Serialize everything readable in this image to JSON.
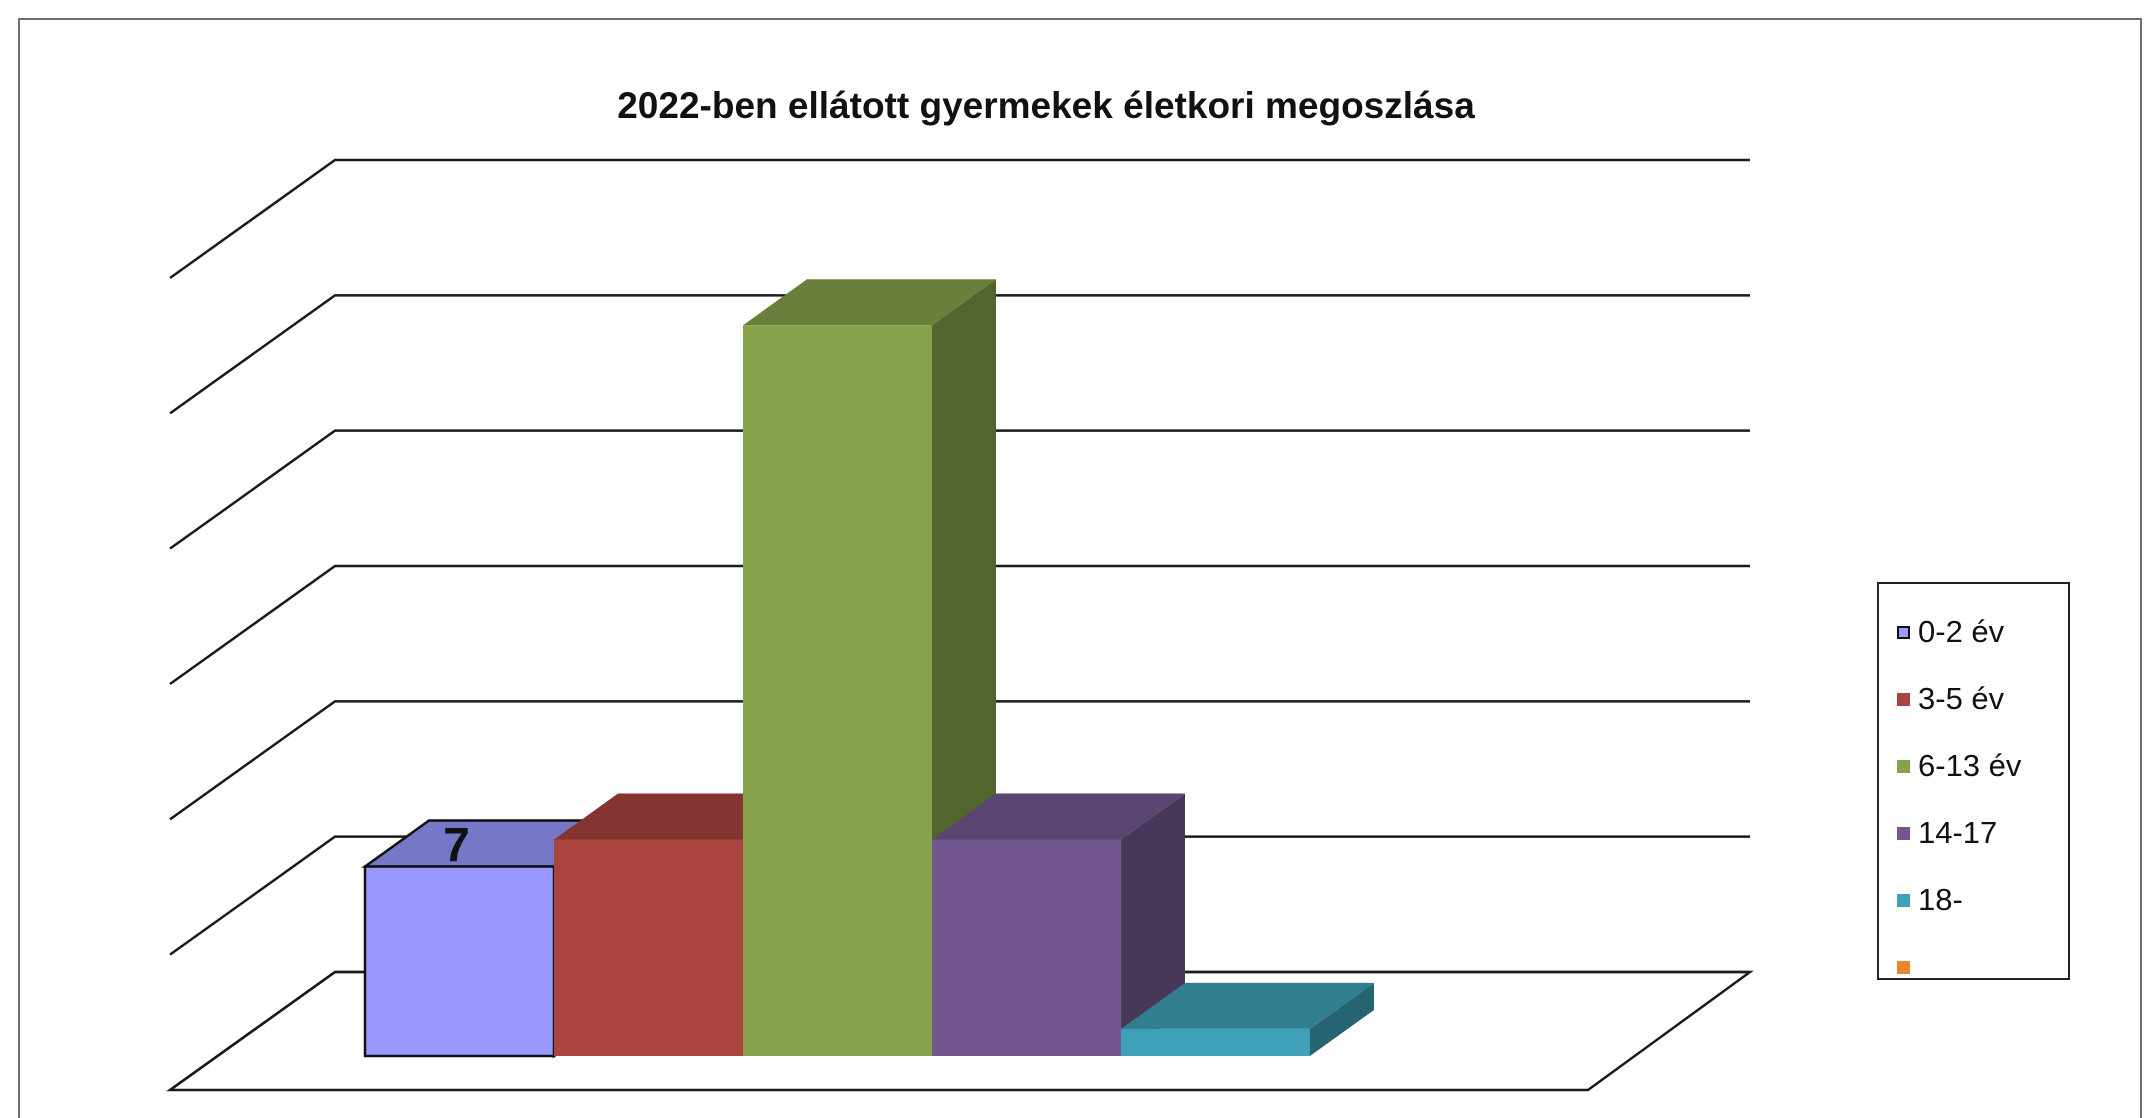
{
  "chart_data": {
    "type": "bar",
    "title": "2022-ben ellátott gyermekek életkori megoszlása",
    "categories": [
      "0-2 év",
      "3-5 év",
      "6-13 év",
      "14-17",
      "18-",
      ""
    ],
    "values": [
      7,
      8,
      27,
      8,
      1,
      0
    ],
    "data_labels": [
      {
        "index": 0,
        "text": "7"
      }
    ],
    "colors": [
      "#9999ff",
      "#a9443f",
      "#86a34b",
      "#72588f",
      "#3fa1b8",
      "#e9872f"
    ],
    "ylim": [
      0,
      30
    ],
    "y_gridlines": [
      0,
      5,
      10,
      15,
      20,
      25,
      30
    ],
    "grid": true,
    "three_d": true,
    "legend": {
      "position": "right",
      "entries": [
        "0-2 év",
        "3-5 év",
        "6-13 év",
        "14-17",
        "18-",
        ""
      ]
    }
  }
}
